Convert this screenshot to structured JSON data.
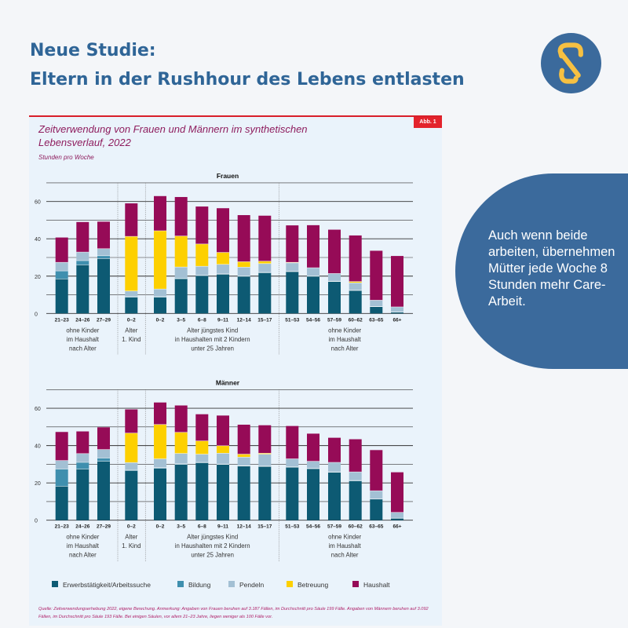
{
  "headline": {
    "line1": "Neue Studie:",
    "line2": "Eltern in der Rushhour des Lebens entlasten"
  },
  "side_note": "Auch wenn beide arbeiten, übernehmen Mütter jede Woche 8 Stunden mehr Care-Arbeit.",
  "figure": {
    "badge": "Abb. 1",
    "title": "Zeitverwendung von Frauen und Männern im synthetischen Lebensverlauf, 2022",
    "subtitle": "Stunden pro Woche",
    "source": "Quelle: Zeitverwendungserhebung 2022, eigene Berechung. Anmerkung: Angaben von Frauen beruhen auf 3.187 Fällen, im Durchschnitt pro Säule 199 Fälle. Angaben von Männern beruhen auf 3.092 Fällen, im Durchschnitt pro Säule 193 Fälle. Bei einigen Säulen, vor allem 21–23 Jahre, liegen weniger als 100 Fälle vor."
  },
  "colors": {
    "Erwerbstätigkeit/Arbeitssuche": "#0d5a73",
    "Bildung": "#3f8fae",
    "Pendeln": "#a3c0d4",
    "Betreuung": "#fdd000",
    "Haushalt": "#960b57",
    "brand": "#2f6597",
    "logo_accent": "#f6c042"
  },
  "chart_data": [
    {
      "type": "bar",
      "stacked": true,
      "title": "Frauen",
      "ylabel": "Stunden pro Woche",
      "ylim": [
        0,
        70
      ],
      "yticks": [
        0,
        20,
        40,
        60
      ],
      "categories": [
        "21–23",
        "24–26",
        "27–29",
        "0–2",
        "0–2",
        "3–5",
        "6–8",
        "9–11",
        "12–14",
        "15–17",
        "51–53",
        "54–56",
        "57–59",
        "60–62",
        "63–65",
        "66+"
      ],
      "groups": [
        {
          "label": [
            "ohne Kinder",
            "im Haushalt",
            "nach Alter"
          ],
          "span": [
            0,
            2
          ]
        },
        {
          "label": [
            "Alter",
            "1. Kind"
          ],
          "span": [
            3,
            3
          ]
        },
        {
          "label": [
            "Alter jüngstes Kind",
            "in Haushalten mit 2 Kindern",
            "unter 25 Jahren"
          ],
          "span": [
            4,
            9
          ]
        },
        {
          "label": [
            "ohne Kinder",
            "im Haushalt",
            "nach Alter"
          ],
          "span": [
            10,
            15
          ]
        }
      ],
      "series": [
        {
          "name": "Erwerbstätigkeit/Arbeitssuche",
          "values": [
            18.5,
            26,
            29.4,
            8.7,
            8.7,
            18.6,
            20.3,
            21,
            19.9,
            21.8,
            22.4,
            19.9,
            17.1,
            12.3,
            3.6,
            0.7
          ]
        },
        {
          "name": "Bildung",
          "values": [
            4.3,
            2.3,
            1.5,
            0.3,
            0.3,
            0.3,
            0.2,
            0.2,
            0.2,
            0.2,
            0.2,
            0.2,
            0.2,
            0.1,
            0.1,
            0.1
          ]
        },
        {
          "name": "Pendeln",
          "values": [
            4.6,
            4.6,
            3.8,
            3,
            4.1,
            6,
            4.8,
            5.1,
            4.7,
            4.7,
            4.5,
            4.4,
            4.1,
            4,
            3.4,
            2.7
          ]
        },
        {
          "name": "Betreuung",
          "values": [
            0,
            0,
            0,
            29.3,
            31.2,
            16.6,
            11.9,
            6.4,
            2.9,
            1.3,
            0.3,
            0,
            0,
            0.7,
            0,
            0
          ]
        },
        {
          "name": "Haushalt",
          "values": [
            13.3,
            16.1,
            14.5,
            17.7,
            18.6,
            20.9,
            20.1,
            23.7,
            25,
            24.4,
            19.8,
            22.8,
            23.5,
            24.7,
            26.5,
            27.3
          ]
        }
      ]
    },
    {
      "type": "bar",
      "stacked": true,
      "title": "Männer",
      "ylabel": "Stunden pro Woche",
      "ylim": [
        0,
        70
      ],
      "yticks": [
        0,
        20,
        40,
        60
      ],
      "categories": [
        "21–23",
        "24–26",
        "27–29",
        "0–2",
        "0–2",
        "3–5",
        "6–8",
        "9–11",
        "12–14",
        "15–17",
        "51–53",
        "54–56",
        "57–59",
        "60–62",
        "63–65",
        "66+"
      ],
      "groups": [
        {
          "label": [
            "ohne Kinder",
            "im Haushalt",
            "nach Alter"
          ],
          "span": [
            0,
            2
          ]
        },
        {
          "label": [
            "Alter",
            "1. Kind"
          ],
          "span": [
            3,
            3
          ]
        },
        {
          "label": [
            "Alter jüngstes Kind",
            "in Haushalten mit 2 Kindern",
            "unter 25 Jahren"
          ],
          "span": [
            4,
            9
          ]
        },
        {
          "label": [
            "ohne Kinder",
            "im Haushalt",
            "nach Alter"
          ],
          "span": [
            10,
            15
          ]
        }
      ],
      "series": [
        {
          "name": "Erwerbstätigkeit/Arbeitssuche",
          "values": [
            18.2,
            27.4,
            31.6,
            26.6,
            27.8,
            29.9,
            30.8,
            29.9,
            29,
            28.8,
            28.4,
            27.6,
            25.7,
            21.1,
            11.3,
            1
          ]
        },
        {
          "name": "Bildung",
          "values": [
            9.2,
            3.6,
            1.7,
            0.4,
            0.4,
            0.3,
            0.2,
            0.2,
            0.2,
            0.2,
            0.2,
            0.2,
            0.2,
            0.2,
            0.1,
            0.1
          ]
        },
        {
          "name": "Pendeln",
          "values": [
            4.6,
            4.7,
            4.6,
            3.9,
            4.7,
            5.6,
            4.4,
            5.8,
            4.6,
            6.4,
            4.3,
            3.8,
            5.1,
            4.6,
            4.4,
            3.1
          ]
        },
        {
          "name": "Betreuung",
          "values": [
            0,
            0,
            0,
            15.8,
            18.4,
            11.3,
            7.1,
            4,
            1.6,
            0.5,
            0,
            0,
            0,
            0,
            0,
            0
          ]
        },
        {
          "name": "Haushalt",
          "values": [
            15.3,
            11.9,
            11.9,
            12.7,
            11.8,
            14.4,
            14.3,
            16.2,
            15.8,
            15,
            17.6,
            14.8,
            13.2,
            17.5,
            21.8,
            21.5
          ]
        }
      ]
    }
  ]
}
